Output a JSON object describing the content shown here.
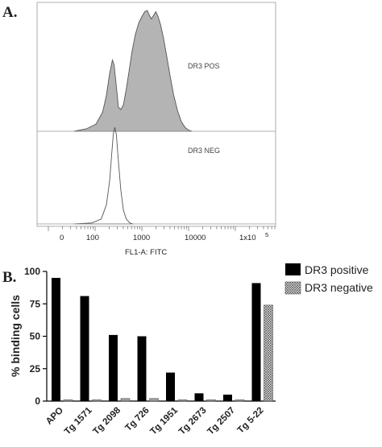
{
  "chart_data": [
    {
      "type": "area",
      "panel_label": "A.",
      "xlabel": "FL1-A: FITC",
      "x_scale": "log",
      "x_ticks": [
        "0",
        "100",
        "1000",
        "10000",
        "1x10",
        "5"
      ],
      "series": [
        {
          "name": "DR3 POS",
          "filled": true,
          "fill_color": "#b4b4b4",
          "points": [
            [
              3.5,
              0.0
            ],
            [
              6.5,
              0.02
            ],
            [
              10.5,
              0.06
            ],
            [
              14.5,
              0.16
            ],
            [
              17.5,
              0.3
            ],
            [
              20.5,
              0.48
            ],
            [
              23.5,
              0.59
            ],
            [
              25.5,
              0.55
            ],
            [
              28.5,
              0.37
            ],
            [
              31.5,
              0.2
            ],
            [
              35.5,
              0.18
            ],
            [
              40.5,
              0.22
            ],
            [
              46.5,
              0.35
            ],
            [
              53.5,
              0.5
            ],
            [
              61.5,
              0.66
            ],
            [
              72.5,
              0.8
            ],
            [
              86.5,
              0.9
            ],
            [
              100.5,
              0.95
            ],
            [
              115.5,
              0.99
            ],
            [
              130.5,
              1.0
            ],
            [
              145.5,
              0.96
            ],
            [
              160.5,
              0.93
            ],
            [
              178.5,
              0.96
            ],
            [
              198.5,
              0.99
            ],
            [
              222.5,
              0.95
            ],
            [
              252.5,
              0.88
            ],
            [
              290.5,
              0.77
            ],
            [
              340.5,
              0.62
            ],
            [
              400.5,
              0.46
            ],
            [
              480.5,
              0.3
            ],
            [
              580.5,
              0.17
            ],
            [
              700.5,
              0.08
            ],
            [
              850.5,
              0.03
            ],
            [
              1000.5,
              0.01
            ],
            [
              1200.5,
              0.0
            ]
          ]
        },
        {
          "name": "DR3 NEG",
          "filled": false,
          "points": [
            [
              3.5,
              0.0
            ],
            [
              8.5,
              0.01
            ],
            [
              13.5,
              0.05
            ],
            [
              17.5,
              0.2
            ],
            [
              20.5,
              0.45
            ],
            [
              22.5,
              0.7
            ],
            [
              24.5,
              0.93
            ],
            [
              26.5,
              1.0
            ],
            [
              28.5,
              0.92
            ],
            [
              31.5,
              0.65
            ],
            [
              35.5,
              0.35
            ],
            [
              40.5,
              0.14
            ],
            [
              46.5,
              0.05
            ],
            [
              55.5,
              0.01
            ],
            [
              65.5,
              0.0
            ]
          ]
        }
      ]
    },
    {
      "type": "bar",
      "panel_label": "B.",
      "ylabel": "% binding cells",
      "ylim": [
        0,
        100
      ],
      "yticks": [
        "0",
        "25",
        "50",
        "75",
        "100"
      ],
      "categories": [
        "APO",
        "Tg 1571",
        "Tg 2098",
        "Tg 726",
        "Tg 1951",
        "Tg 2673",
        "Tg 2507",
        "Tg 5-22"
      ],
      "legend_position": "top-right",
      "series": [
        {
          "name": "DR3 positive",
          "color": "#000000",
          "pattern": "solid",
          "values": [
            95,
            81,
            51,
            50,
            22,
            6,
            5,
            91
          ]
        },
        {
          "name": "DR3 negative",
          "color": "#bdbdbd",
          "pattern": "crosshatch",
          "values": [
            1,
            1,
            2,
            2,
            1,
            1,
            1,
            74
          ]
        }
      ]
    }
  ]
}
